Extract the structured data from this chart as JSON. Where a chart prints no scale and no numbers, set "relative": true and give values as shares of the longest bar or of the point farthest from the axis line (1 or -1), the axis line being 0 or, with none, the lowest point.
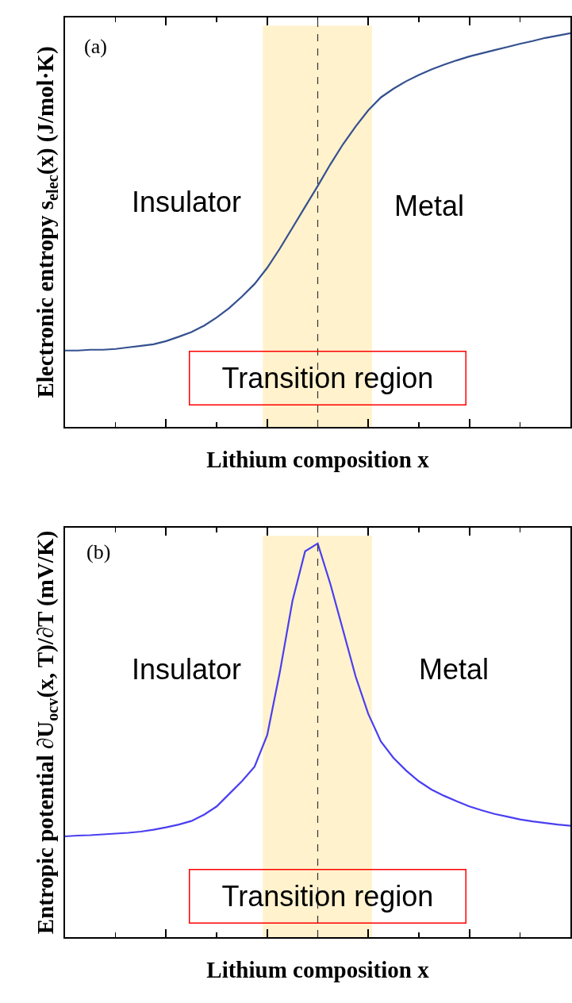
{
  "chart_data": [
    {
      "type": "line",
      "relative": true,
      "ylabel": "Electronic entropy s$_{elec}$(x) (J/mol·K)",
      "xlabel": "Lithium composition x",
      "tick_labels": false,
      "line_style": "solid",
      "categories": [
        null,
        null,
        null,
        null,
        null,
        null,
        null,
        null,
        null,
        null,
        null,
        null,
        null,
        null,
        null,
        null,
        null,
        null,
        null,
        null,
        null,
        null,
        null,
        null,
        null,
        null,
        null,
        null,
        null,
        null,
        null,
        null,
        null,
        null,
        null,
        null,
        null,
        null,
        null,
        null,
        null
      ],
      "series": [
        {
          "color": "#34508f",
          "values": [
            0.194,
            0.194,
            0.196,
            0.196,
            0.198,
            0.202,
            0.206,
            0.21,
            0.218,
            0.229,
            0.241,
            0.257,
            0.278,
            0.302,
            0.331,
            0.363,
            0.404,
            0.453,
            0.506,
            0.559,
            0.612,
            0.667,
            0.718,
            0.763,
            0.804,
            0.837,
            0.859,
            0.878,
            0.894,
            0.908,
            0.92,
            0.931,
            0.941,
            0.949,
            0.957,
            0.965,
            0.973,
            0.98,
            0.988,
            0.994,
            1.0
          ]
        }
      ],
      "annotations": [
        "(a)",
        "Insulator",
        "Metal",
        "Transition region"
      ]
    },
    {
      "type": "line",
      "relative": true,
      "ylabel": "Entropic potential ∂U$_{ocv}$(x, T)/∂T (mV/K)",
      "xlabel": "Lithium composition x",
      "tick_labels": false,
      "line_style": "solid",
      "categories": [
        null,
        null,
        null,
        null,
        null,
        null,
        null,
        null,
        null,
        null,
        null,
        null,
        null,
        null,
        null,
        null,
        null,
        null,
        null,
        null,
        null,
        null,
        null,
        null,
        null,
        null,
        null,
        null,
        null,
        null,
        null,
        null,
        null,
        null,
        null,
        null,
        null,
        null,
        null,
        null,
        null
      ],
      "series": [
        {
          "color": "#4a3ff0",
          "values": [
            0.256,
            0.258,
            0.259,
            0.261,
            0.263,
            0.265,
            0.268,
            0.273,
            0.279,
            0.286,
            0.295,
            0.311,
            0.332,
            0.364,
            0.396,
            0.433,
            0.513,
            0.673,
            0.854,
            0.98,
            1.0,
            0.897,
            0.78,
            0.662,
            0.567,
            0.497,
            0.455,
            0.423,
            0.396,
            0.375,
            0.359,
            0.345,
            0.332,
            0.322,
            0.313,
            0.306,
            0.299,
            0.294,
            0.29,
            0.286,
            0.283
          ]
        }
      ],
      "annotations": [
        "(b)",
        "Insulator",
        "Metal",
        "Transition region"
      ]
    }
  ]
}
